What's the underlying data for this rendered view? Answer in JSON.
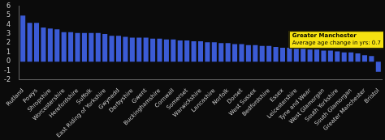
{
  "chart_data": {
    "type": "bar",
    "categories": [
      "Rutland",
      null,
      "Powys",
      null,
      "Shropshire",
      null,
      "Worcestershire",
      null,
      "Herefordshire",
      null,
      "Suffolk",
      null,
      "East Riding of Yorkshire",
      null,
      "Gwynedd",
      null,
      "Derbyshire",
      null,
      "Gwent",
      null,
      "Buckinghamshire",
      null,
      "Cornwall",
      null,
      "Somerset",
      null,
      "Warwickshire",
      null,
      "Lancashire",
      null,
      "Norfolk",
      null,
      "Dorset",
      null,
      "West Sussex",
      null,
      "Bedfordshire",
      null,
      "Essex",
      null,
      "Leicestershire",
      null,
      "Tyne and Wear",
      null,
      "West Glamorgan",
      null,
      "South Yorkshire",
      null,
      "South Glamorgan",
      null,
      "Greater Manchester",
      null,
      "Bristol"
    ],
    "values": [
      5.0,
      4.2,
      4.2,
      3.7,
      3.6,
      3.5,
      3.2,
      3.2,
      3.1,
      3.1,
      3.1,
      3.1,
      3.0,
      2.8,
      2.8,
      2.7,
      2.6,
      2.6,
      2.6,
      2.5,
      2.5,
      2.4,
      2.4,
      2.3,
      2.3,
      2.2,
      2.2,
      2.1,
      2.1,
      2.0,
      2.0,
      1.9,
      1.9,
      1.8,
      1.8,
      1.7,
      1.7,
      1.6,
      1.5,
      1.5,
      1.4,
      1.4,
      1.3,
      1.3,
      1.2,
      1.2,
      1.1,
      1.0,
      1.0,
      0.9,
      0.7,
      0.6,
      -1.1
    ],
    "color": "#3b5bd6",
    "ylim": [
      -2,
      6
    ],
    "yticks": [
      -2,
      -1,
      0,
      1,
      2,
      3,
      4,
      5,
      6
    ],
    "grid": false,
    "annotation": {
      "title": "Greater Manchester",
      "text": "Average age change in yrs: 0.7"
    }
  }
}
